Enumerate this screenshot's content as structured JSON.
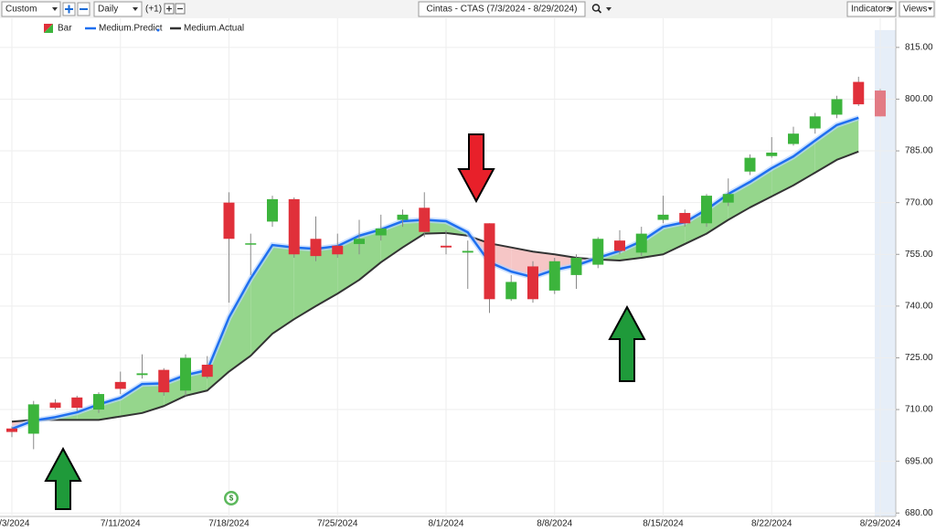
{
  "toolbar": {
    "range": "Custom",
    "interval": "Daily",
    "offset": "(+1)",
    "symbol": "Cintas - CTAS (7/3/2024 - 8/29/2024)",
    "indicators": "Indicators",
    "views": "Views"
  },
  "chart_data": {
    "type": "candlestick",
    "event_marker": "$",
    "categories": [
      "7/3/2024",
      null,
      null,
      null,
      null,
      "7/11/2024",
      null,
      null,
      null,
      null,
      "7/18/2024",
      null,
      null,
      null,
      null,
      "7/25/2024",
      null,
      null,
      null,
      null,
      "8/1/2024",
      null,
      null,
      null,
      null,
      "8/8/2024",
      null,
      null,
      null,
      null,
      "8/15/2024",
      null,
      null,
      null,
      null,
      "8/22/2024",
      null,
      null,
      null,
      null,
      "8/29/2024"
    ],
    "series": [
      {
        "name": "Bar",
        "up_color": "#3cb43c",
        "down_color": "#e0303a",
        "open": [
          704.5,
          703,
          712,
          713.5,
          710,
          718,
          720,
          721.5,
          715.5,
          723,
          770,
          757.8,
          764.5,
          771,
          759.5,
          757.5,
          758,
          760.5,
          765,
          768.5,
          757.5,
          755.5,
          764,
          742,
          751.5,
          744.5,
          749,
          752,
          759,
          755.5,
          765,
          767,
          764,
          770,
          779,
          783.5,
          787,
          791.5,
          795.5,
          805,
          802.5
        ],
        "high": [
          705,
          712.5,
          713,
          714,
          715,
          721,
          726,
          722,
          726,
          725.5,
          773,
          761,
          772,
          771.5,
          766,
          761,
          765,
          766.5,
          768,
          773,
          762,
          759,
          764,
          749,
          753,
          754,
          755,
          760,
          762,
          763,
          772,
          768,
          772.5,
          777,
          784,
          789,
          792,
          796,
          801,
          806.5,
          803
        ],
        "low": [
          702,
          698.5,
          710,
          709.5,
          709,
          714.5,
          719,
          714,
          714,
          719,
          741,
          749,
          763,
          754,
          753,
          754,
          755,
          759,
          763,
          760,
          755,
          745,
          738,
          741.5,
          741,
          743.5,
          745,
          751,
          755,
          754.5,
          764,
          763,
          763,
          769,
          778,
          783,
          786.5,
          790,
          794.5,
          798,
          795
        ],
        "close": [
          703.5,
          711.5,
          710.5,
          710.5,
          714.5,
          716,
          720.5,
          715,
          725,
          719.5,
          759.5,
          758.2,
          771,
          755,
          754.5,
          755,
          759.5,
          762.5,
          766.5,
          761.5,
          757,
          756,
          742,
          747,
          742,
          753,
          754,
          759.5,
          756,
          761,
          766.5,
          764,
          772,
          772.5,
          783,
          784.5,
          790,
          795,
          800,
          798.5,
          795
        ]
      },
      {
        "name": "Medium.Predict",
        "color": "#1f6ff0",
        "values": [
          704.4,
          706.8,
          707.8,
          709.2,
          711.5,
          713.4,
          717.4,
          717.6,
          720,
          721.4,
          736.7,
          748,
          757.7,
          757,
          756.6,
          757.4,
          760.4,
          762.2,
          764.6,
          765,
          764.6,
          761.4,
          752.7,
          750,
          748.4,
          750.5,
          751.8,
          754,
          756,
          758.8,
          763,
          764.3,
          768,
          772.5,
          776,
          780,
          783.4,
          788,
          792.5,
          794.6,
          null
        ]
      },
      {
        "name": "Medium.Actual",
        "color": "#333333",
        "values": [
          706.5,
          707,
          707,
          707,
          707,
          708,
          709,
          711,
          714,
          715.5,
          721,
          725.6,
          732,
          736.2,
          740,
          743.6,
          747.6,
          752.7,
          757,
          761,
          761.2,
          760.4,
          758.2,
          757,
          755.8,
          755,
          754,
          753.5,
          753.2,
          754,
          755,
          758,
          761,
          765,
          768.6,
          771.8,
          775,
          778.7,
          782.4,
          784.8,
          null
        ]
      }
    ],
    "spread_up_color": "#95d68c",
    "spread_down_color": "#f6c6c6",
    "ylim": [
      679,
      820
    ],
    "yticks": [
      {
        "value": 680,
        "label": "680.00"
      },
      {
        "value": 695,
        "label": "695.00"
      },
      {
        "value": 710,
        "label": "710.00"
      },
      {
        "value": 725,
        "label": "725.00"
      },
      {
        "value": 740,
        "label": "740.00"
      },
      {
        "value": 755,
        "label": "755.00"
      },
      {
        "value": 770,
        "label": "770.00"
      },
      {
        "value": 785,
        "label": "785.00"
      },
      {
        "value": 800,
        "label": "800.00"
      },
      {
        "value": 815,
        "label": "815.00"
      }
    ],
    "grid": true
  }
}
